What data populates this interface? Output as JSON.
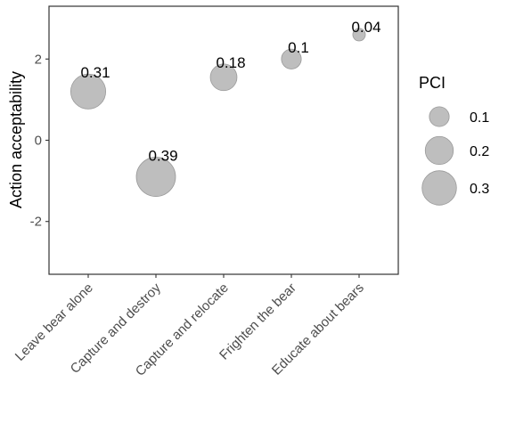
{
  "chart_data": {
    "type": "scatter",
    "ylabel": "Action acceptability",
    "categories": [
      "Leave bear alone",
      "Capture and destroy",
      "Capture and relocate",
      "Frighten the bear",
      "Educate about bears"
    ],
    "values": [
      1.2,
      -0.9,
      1.55,
      2.0,
      2.6
    ],
    "pci": [
      0.31,
      0.39,
      0.18,
      0.1,
      0.04
    ],
    "labels": [
      "0.31",
      "0.39",
      "0.18",
      "0.1",
      "0.04"
    ],
    "ylim": [
      -3.3,
      3.3
    ],
    "yticks": [
      -2,
      0,
      2
    ],
    "grid": false,
    "legend": {
      "title": "PCI",
      "placement": "right",
      "items": [
        {
          "value": 0.1,
          "label": "0.1"
        },
        {
          "value": 0.2,
          "label": "0.2"
        },
        {
          "value": 0.3,
          "label": "0.3"
        }
      ]
    },
    "colors": {
      "point_fill": "#bebebe",
      "point_stroke": "#9a9a9a",
      "panel_border": "#333333"
    }
  }
}
